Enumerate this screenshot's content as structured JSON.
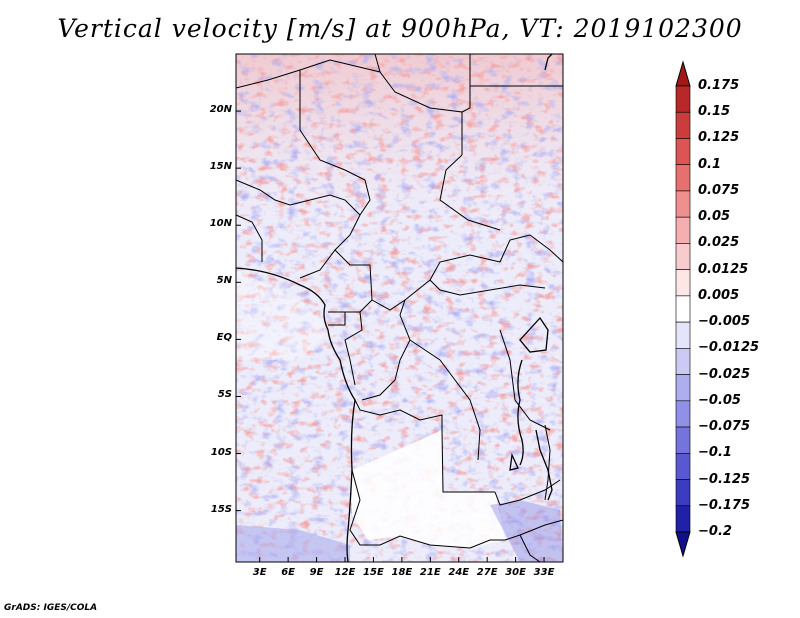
{
  "title": "Vertical velocity [m/s] at 900hPa, VT: 2019102300",
  "credit": "GrADS: IGES/COLA",
  "map": {
    "variable": "Vertical velocity",
    "units": "m/s",
    "level": "900hPa",
    "valid_time": "2019102300",
    "lat_labels": [
      "20N",
      "15N",
      "10N",
      "5N",
      "EQ",
      "5S",
      "10S",
      "15S"
    ],
    "lat_values": [
      20,
      15,
      10,
      5,
      0,
      -5,
      -10,
      -15
    ],
    "lon_labels": [
      "3E",
      "6E",
      "9E",
      "12E",
      "15E",
      "18E",
      "21E",
      "24E",
      "27E",
      "30E",
      "33E"
    ],
    "lon_values": [
      3,
      6,
      9,
      12,
      15,
      18,
      21,
      24,
      27,
      30,
      33
    ],
    "lat_range": [
      -19.5,
      25
    ],
    "lon_range": [
      0.5,
      35
    ]
  },
  "colorbar": {
    "labels": [
      "0.175",
      "0.15",
      "0.125",
      "0.1",
      "0.075",
      "0.05",
      "0.025",
      "0.0125",
      "0.005",
      "−0.005",
      "−0.0125",
      "−0.025",
      "−0.05",
      "−0.075",
      "−0.1",
      "−0.125",
      "−0.175",
      "−0.2"
    ],
    "colors": [
      "#a01818",
      "#b82828",
      "#cc3c3c",
      "#dc5454",
      "#e67070",
      "#ee9090",
      "#f4b0b0",
      "#f8cccc",
      "#fce6e6",
      "#ffffff",
      "#e4e4fa",
      "#cacaf4",
      "#aeaeee",
      "#9090e6",
      "#7474dc",
      "#5858d0",
      "#3c3cc0",
      "#2020a8",
      "#10108c"
    ]
  }
}
